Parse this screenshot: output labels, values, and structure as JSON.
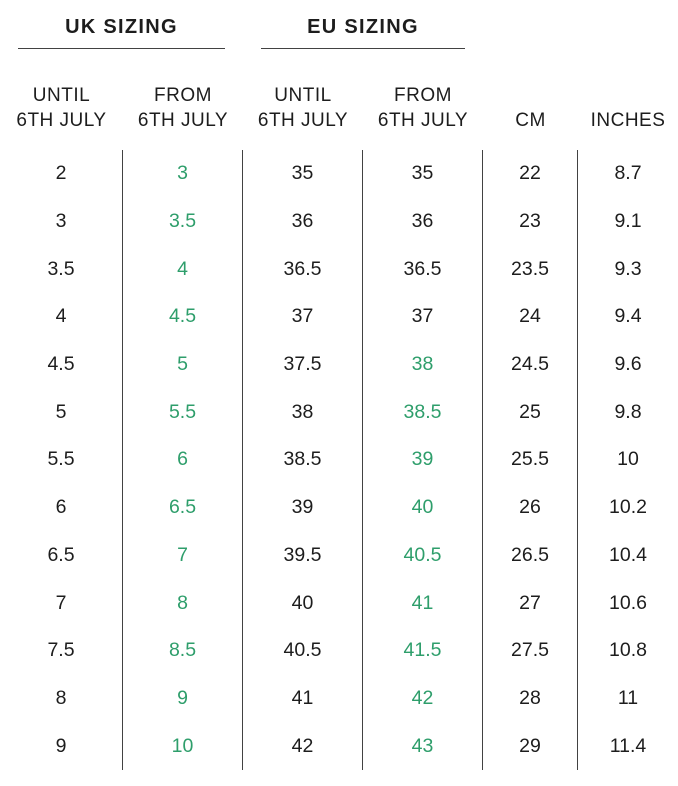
{
  "colors": {
    "text": "#1d1d1d",
    "highlight_green": "#2e9e6b",
    "divider": "#424242"
  },
  "chart_data": {
    "type": "table",
    "section_titles": [
      "UK SIZING",
      "EU SIZING"
    ],
    "columns": [
      {
        "id": "uk_until",
        "group": "UK SIZING",
        "label": [
          "UNTIL",
          "6TH JULY"
        ]
      },
      {
        "id": "uk_from",
        "group": "UK SIZING",
        "label": [
          "FROM",
          "6TH JULY"
        ]
      },
      {
        "id": "eu_until",
        "group": "EU SIZING",
        "label": [
          "UNTIL",
          "6TH JULY"
        ]
      },
      {
        "id": "eu_from",
        "group": "EU SIZING",
        "label": [
          "FROM",
          "6TH JULY"
        ]
      },
      {
        "id": "cm",
        "group": "",
        "label": [
          "CM"
        ]
      },
      {
        "id": "inches",
        "group": "",
        "label": [
          "INCHES"
        ]
      }
    ],
    "rows": [
      {
        "cells": [
          {
            "value": "2"
          },
          {
            "value": "3",
            "highlight": true
          },
          {
            "value": "35"
          },
          {
            "value": "35"
          },
          {
            "value": "22"
          },
          {
            "value": "8.7"
          }
        ]
      },
      {
        "cells": [
          {
            "value": "3"
          },
          {
            "value": "3.5",
            "highlight": true
          },
          {
            "value": "36"
          },
          {
            "value": "36"
          },
          {
            "value": "23"
          },
          {
            "value": "9.1"
          }
        ]
      },
      {
        "cells": [
          {
            "value": "3.5"
          },
          {
            "value": "4",
            "highlight": true
          },
          {
            "value": "36.5"
          },
          {
            "value": "36.5"
          },
          {
            "value": "23.5"
          },
          {
            "value": "9.3"
          }
        ]
      },
      {
        "cells": [
          {
            "value": "4"
          },
          {
            "value": "4.5",
            "highlight": true
          },
          {
            "value": "37"
          },
          {
            "value": "37"
          },
          {
            "value": "24"
          },
          {
            "value": "9.4"
          }
        ]
      },
      {
        "cells": [
          {
            "value": "4.5"
          },
          {
            "value": "5",
            "highlight": true
          },
          {
            "value": "37.5"
          },
          {
            "value": "38",
            "highlight": true
          },
          {
            "value": "24.5"
          },
          {
            "value": "9.6"
          }
        ]
      },
      {
        "cells": [
          {
            "value": "5"
          },
          {
            "value": "5.5",
            "highlight": true
          },
          {
            "value": "38"
          },
          {
            "value": "38.5",
            "highlight": true
          },
          {
            "value": "25"
          },
          {
            "value": "9.8"
          }
        ]
      },
      {
        "cells": [
          {
            "value": "5.5"
          },
          {
            "value": "6",
            "highlight": true
          },
          {
            "value": "38.5"
          },
          {
            "value": "39",
            "highlight": true
          },
          {
            "value": "25.5"
          },
          {
            "value": "10"
          }
        ]
      },
      {
        "cells": [
          {
            "value": "6"
          },
          {
            "value": "6.5",
            "highlight": true
          },
          {
            "value": "39"
          },
          {
            "value": "40",
            "highlight": true
          },
          {
            "value": "26"
          },
          {
            "value": "10.2"
          }
        ]
      },
      {
        "cells": [
          {
            "value": "6.5"
          },
          {
            "value": "7",
            "highlight": true
          },
          {
            "value": "39.5"
          },
          {
            "value": "40.5",
            "highlight": true
          },
          {
            "value": "26.5"
          },
          {
            "value": "10.4"
          }
        ]
      },
      {
        "cells": [
          {
            "value": "7"
          },
          {
            "value": "8",
            "highlight": true
          },
          {
            "value": "40"
          },
          {
            "value": "41",
            "highlight": true
          },
          {
            "value": "27"
          },
          {
            "value": "10.6"
          }
        ]
      },
      {
        "cells": [
          {
            "value": "7.5"
          },
          {
            "value": "8.5",
            "highlight": true
          },
          {
            "value": "40.5"
          },
          {
            "value": "41.5",
            "highlight": true
          },
          {
            "value": "27.5"
          },
          {
            "value": "10.8"
          }
        ]
      },
      {
        "cells": [
          {
            "value": "8"
          },
          {
            "value": "9",
            "highlight": true
          },
          {
            "value": "41"
          },
          {
            "value": "42",
            "highlight": true
          },
          {
            "value": "28"
          },
          {
            "value": "11"
          }
        ]
      },
      {
        "cells": [
          {
            "value": "9"
          },
          {
            "value": "10",
            "highlight": true
          },
          {
            "value": "42"
          },
          {
            "value": "43",
            "highlight": true
          },
          {
            "value": "29"
          },
          {
            "value": "11.4"
          }
        ]
      }
    ]
  }
}
